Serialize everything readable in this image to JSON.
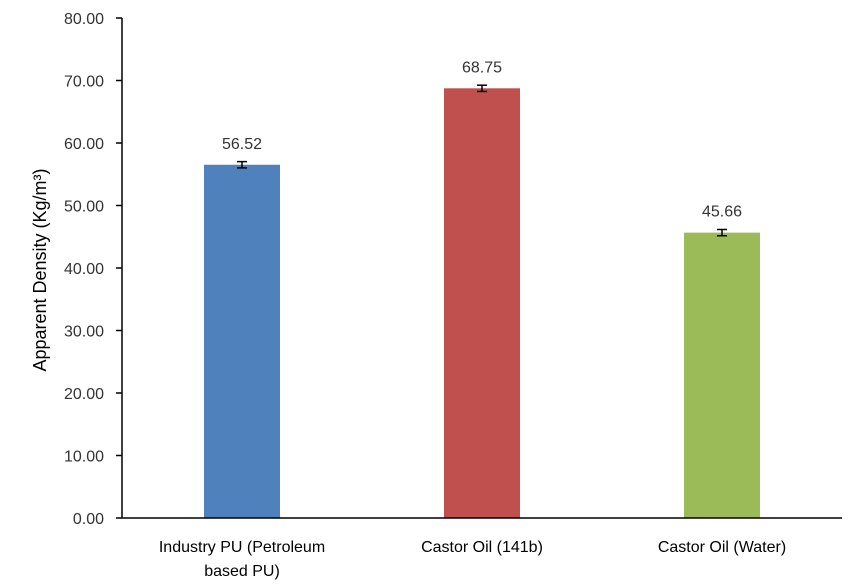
{
  "chart_data": {
    "type": "bar",
    "categories": [
      [
        "Industry PU (Petroleum",
        "based PU)"
      ],
      [
        "Castor Oil (141b)"
      ],
      [
        "Castor Oil (Water)"
      ]
    ],
    "values": [
      56.52,
      68.75,
      45.66
    ],
    "error": [
      0.5,
      0.5,
      0.5
    ],
    "data_labels": [
      "56.52",
      "68.75",
      "45.66"
    ],
    "colors": [
      "#4f81bd",
      "#c0504d",
      "#9bbb59"
    ],
    "ylabel": "Apparent Density (Kg/m³)",
    "xlabel": "",
    "title": "",
    "ylim": [
      0,
      80
    ],
    "yticks": [
      {
        "value": 0,
        "label": "0.00"
      },
      {
        "value": 10,
        "label": "10.00"
      },
      {
        "value": 20,
        "label": "20.00"
      },
      {
        "value": 30,
        "label": "30.00"
      },
      {
        "value": 40,
        "label": "40.00"
      },
      {
        "value": 50,
        "label": "50.00"
      },
      {
        "value": 60,
        "label": "60.00"
      },
      {
        "value": 70,
        "label": "70.00"
      },
      {
        "value": 80,
        "label": "80.00"
      }
    ],
    "grid": false,
    "legend": "none"
  }
}
